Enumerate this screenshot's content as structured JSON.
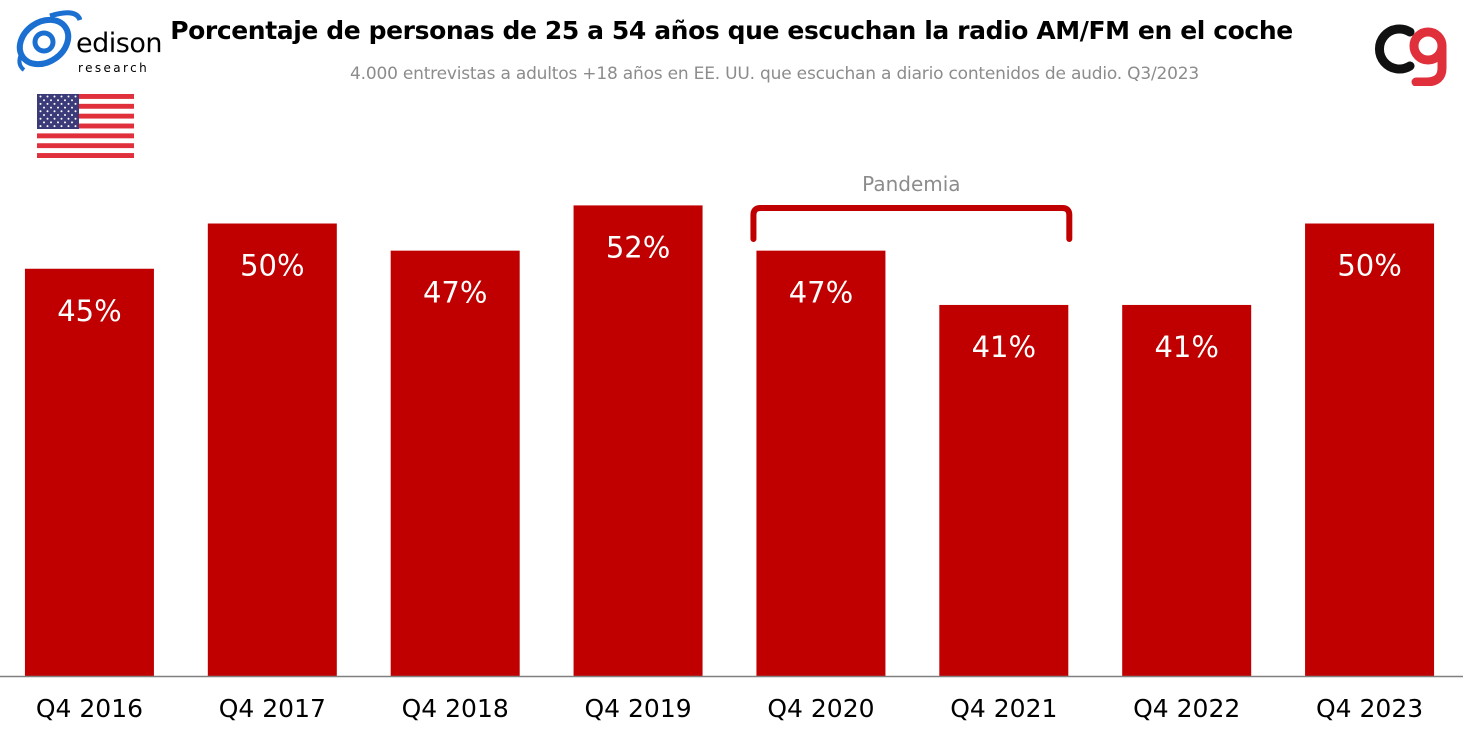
{
  "header": {
    "title": "Porcentaje de personas de 25 a 54 años que escuchan la radio AM/FM en el coche",
    "subtitle": "4.000 entrevistas a adultos +18 años en EE. UU. que escuchan a diario contenidos de audio. Q3/2023"
  },
  "logos": {
    "left_word": "edison",
    "left_sub": "research",
    "left_icon": "edison-swirl-icon",
    "right_icon": "cg-brand-icon",
    "flag_icon": "us-flag-icon"
  },
  "colors": {
    "bar": "#c00000",
    "bracket": "#c00000",
    "axis": "#808080",
    "flag_red": "#e0303c",
    "flag_blue": "#3b3b7a"
  },
  "chart_data": {
    "type": "bar",
    "categories": [
      "Q4 2016",
      "Q4 2017",
      "Q4 2018",
      "Q4 2019",
      "Q4 2020",
      "Q4 2021",
      "Q4 2022",
      "Q4 2023"
    ],
    "values": [
      45,
      50,
      47,
      52,
      47,
      41,
      41,
      50
    ],
    "value_labels": [
      "45%",
      "50%",
      "47%",
      "52%",
      "47%",
      "41%",
      "41%",
      "50%"
    ],
    "unit": "%",
    "ylim": [
      0,
      55
    ],
    "grid": false,
    "annotation": {
      "label": "Pandemia",
      "from_category": "Q4 2020",
      "to_category": "Q4 2021"
    }
  }
}
